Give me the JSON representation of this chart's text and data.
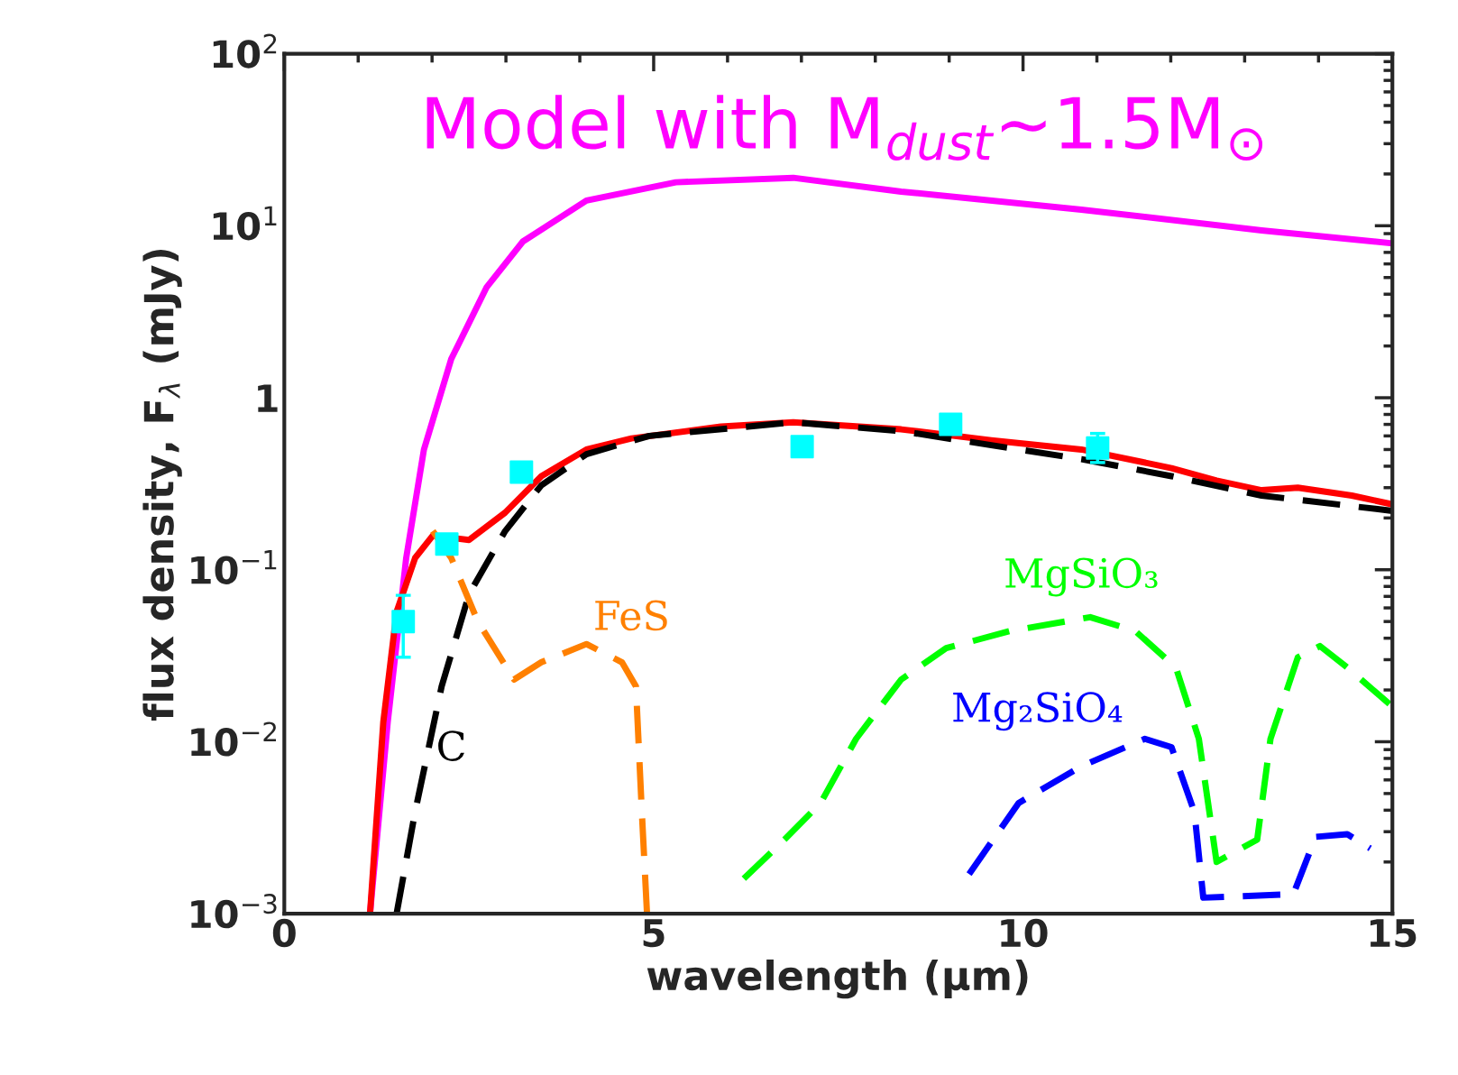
{
  "chart_data": {
    "type": "line",
    "xlabel": "wavelength (μm)",
    "ylabel": "flux density, F$_{λ}$ (mJy)",
    "xlim": [
      0,
      15
    ],
    "xticks": [
      0,
      5,
      10,
      15
    ],
    "ylim": [
      0.001,
      100
    ],
    "log": "y",
    "yticks": [
      {
        "value": 0.001,
        "label": "10$^{−3}$"
      },
      {
        "value": 0.01,
        "label": "10$^{−2}$"
      },
      {
        "value": 0.1,
        "label": "10$^{−1}$"
      },
      {
        "value": 1,
        "label": "1"
      },
      {
        "value": 10,
        "label": "10$^{1}$"
      },
      {
        "value": 100,
        "label": "10$^{2}$"
      }
    ],
    "grid": false,
    "legend": false,
    "series": [
      {
        "name": "Model with M$_{dust}$~1.5M$_{⊙}$",
        "color": "#ff00ff",
        "line_style": "solid",
        "x": [
          1.16,
          1.4,
          1.65,
          1.89,
          2.26,
          2.74,
          3.23,
          4.09,
          5.3,
          6.89,
          8.35,
          10.79,
          13.23,
          15
        ],
        "values": [
          0.001,
          0.013,
          0.117,
          0.5,
          1.68,
          4.4,
          8.1,
          14,
          17.9,
          19,
          15.8,
          12.4,
          9.4,
          7.9
        ]
      },
      {
        "color": "#ff0000",
        "line_style": "solid",
        "x": [
          1.16,
          1.34,
          1.52,
          1.77,
          2.01,
          2.5,
          2.99,
          3.48,
          4.09,
          4.7,
          5.91,
          6.89,
          8.35,
          9.57,
          10.79,
          12.01,
          12.62,
          13.23,
          13.72,
          14.45,
          15
        ],
        "values": [
          0.001,
          0.013,
          0.057,
          0.117,
          0.158,
          0.149,
          0.215,
          0.35,
          0.5,
          0.58,
          0.68,
          0.72,
          0.655,
          0.566,
          0.5,
          0.39,
          0.33,
          0.29,
          0.3,
          0.27,
          0.24
        ]
      },
      {
        "name": "C",
        "color": "#000000",
        "line_style": "dashed",
        "x": [
          1.52,
          1.77,
          2.13,
          2.5,
          2.99,
          3.48,
          4.09,
          4.94,
          6.89,
          8.35,
          9.57,
          10.79,
          12.01,
          13.23,
          15
        ],
        "values": [
          0.001,
          0.0039,
          0.021,
          0.072,
          0.168,
          0.31,
          0.47,
          0.6,
          0.72,
          0.64,
          0.53,
          0.44,
          0.35,
          0.27,
          0.22
        ]
      },
      {
        "name": "FeS",
        "color": "#ff8000",
        "line_style": "dashed",
        "x": [
          2.01,
          2.26,
          2.62,
          3.11,
          3.48,
          4.09,
          4.57,
          4.76,
          4.84,
          4.91
        ],
        "values": [
          0.168,
          0.117,
          0.05,
          0.023,
          0.029,
          0.037,
          0.029,
          0.021,
          0.0039,
          0.001
        ]
      },
      {
        "name": "MgSiO₃",
        "color": "#00ff00",
        "line_style": "dashed",
        "x": [
          6.22,
          6.77,
          7.26,
          7.74,
          8.35,
          8.96,
          9.82,
          10.91,
          11.52,
          12.07,
          12.38,
          12.62,
          13.17,
          13.35,
          13.72,
          14.02,
          14.39,
          15
        ],
        "values": [
          0.0016,
          0.0027,
          0.0044,
          0.0104,
          0.023,
          0.035,
          0.044,
          0.053,
          0.044,
          0.027,
          0.0104,
          0.002,
          0.0027,
          0.0104,
          0.031,
          0.036,
          0.027,
          0.016
        ]
      },
      {
        "name": "Mg₂SiO₄",
        "color": "#0000ff",
        "line_style": "dashed",
        "x": [
          9.27,
          9.94,
          10.79,
          11.65,
          12.01,
          12.32,
          12.44,
          13.66,
          13.96,
          14.39,
          14.7
        ],
        "values": [
          0.0017,
          0.0044,
          0.0072,
          0.0104,
          0.0093,
          0.0039,
          0.00124,
          0.0013,
          0.0028,
          0.0029,
          0.0024
        ]
      },
      {
        "type": "scatter",
        "color": "#00ffff",
        "marker": "square",
        "x": [
          1.61,
          2.2,
          3.21,
          7.01,
          9.02,
          11.01
        ],
        "values": [
          0.05,
          0.141,
          0.37,
          0.52,
          0.7,
          0.51
        ],
        "errors": [
          [
            0.031,
            0.071
          ],
          null,
          null,
          null,
          [
            0.62,
            0.79
          ],
          [
            0.42,
            0.62
          ]
        ]
      }
    ]
  }
}
